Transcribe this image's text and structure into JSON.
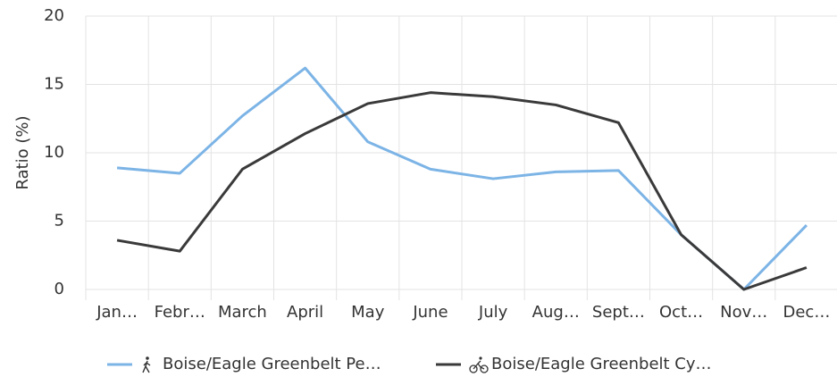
{
  "chart_data": {
    "type": "line",
    "y_label": "Ratio (%)",
    "categories": [
      "Jan…",
      "Febr…",
      "March",
      "April",
      "May",
      "June",
      "July",
      "Aug…",
      "Sept…",
      "Oct…",
      "Nov…",
      "Dec…"
    ],
    "series": [
      {
        "name": "Boise/Eagle Greenbelt Pe…",
        "color": "#7cb4e6",
        "values": [
          8.9,
          8.5,
          12.7,
          16.2,
          10.8,
          8.8,
          8.1,
          8.6,
          8.7,
          4.0,
          0,
          4.7
        ]
      },
      {
        "name": "Boise/Eagle Greenbelt Cy…",
        "color": "#3a3a3a",
        "values": [
          3.6,
          2.8,
          8.8,
          11.4,
          13.6,
          14.4,
          14.1,
          13.5,
          12.2,
          4.0,
          0,
          1.6
        ]
      }
    ],
    "ylim": [
      0,
      20
    ],
    "yticks": [
      0,
      5,
      10,
      15,
      20
    ],
    "grid": true
  }
}
